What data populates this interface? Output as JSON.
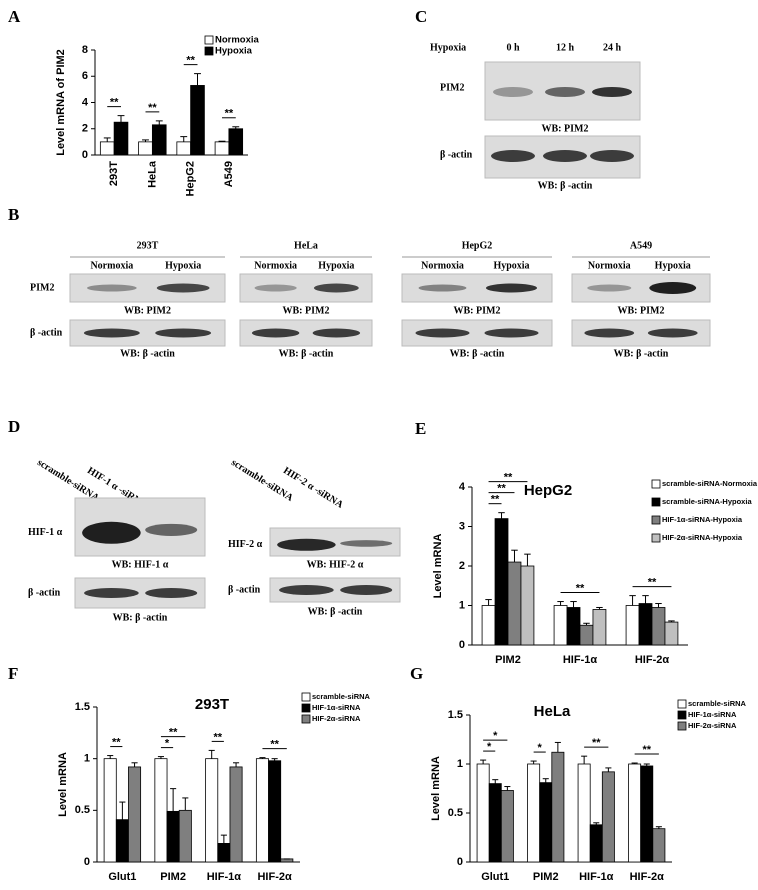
{
  "chart_data": [
    {
      "type": "bar",
      "panel": "A",
      "ylabel": "Level mRNA of PIM2",
      "categories": [
        "293T",
        "HeLa",
        "HepG2",
        "A549"
      ],
      "xtick_rotation": 90,
      "series": [
        {
          "name": "Normoxia",
          "color": "#ffffff",
          "values": [
            1,
            1,
            1,
            1
          ],
          "errors": [
            0.3,
            0.15,
            0.4,
            0.05
          ]
        },
        {
          "name": "Hypoxia",
          "color": "#000000",
          "values": [
            2.5,
            2.3,
            5.3,
            2.0
          ],
          "errors": [
            0.5,
            0.3,
            0.9,
            0.15
          ]
        }
      ],
      "ylim": [
        0,
        8
      ],
      "yticks": [
        0,
        2,
        4,
        6,
        8
      ],
      "grid": false,
      "legend": "top-right",
      "annotations": [
        {
          "text": "**",
          "category": 0,
          "from": 0,
          "to": 1
        },
        {
          "text": "**",
          "category": 1,
          "from": 0,
          "to": 1
        },
        {
          "text": "**",
          "category": 2,
          "from": 0,
          "to": 1
        },
        {
          "text": "**",
          "category": 3,
          "from": 0,
          "to": 1
        }
      ]
    },
    {
      "type": "bar",
      "panel": "E",
      "title": "HepG2",
      "ylabel": "Level mRNA",
      "categories": [
        "PIM2",
        "HIF-1α",
        "HIF-2α"
      ],
      "series": [
        {
          "name": "scramble-siRNA-Normoxia",
          "color": "#ffffff",
          "values": [
            1,
            1,
            1
          ],
          "errors": [
            0.15,
            0.1,
            0.25
          ]
        },
        {
          "name": "scramble-siRNA-Hypoxia",
          "color": "#000000",
          "values": [
            3.2,
            0.95,
            1.05
          ],
          "errors": [
            0.15,
            0.15,
            0.2
          ]
        },
        {
          "name": "HIF-1α-siRNA-Hypoxia",
          "color": "#7f7f7f",
          "values": [
            2.1,
            0.5,
            0.95
          ],
          "errors": [
            0.3,
            0.05,
            0.1
          ]
        },
        {
          "name": "HIF-2α-siRNA-Hypoxia",
          "color": "#bfbfbf",
          "values": [
            2.0,
            0.9,
            0.58
          ],
          "errors": [
            0.3,
            0.05,
            0.03
          ]
        }
      ],
      "ylim": [
        0,
        4
      ],
      "yticks": [
        0,
        1,
        2,
        3,
        4
      ],
      "grid": false,
      "legend": "top-right",
      "annotations": [
        {
          "text": "**",
          "category": 0,
          "from": 0,
          "to": 1
        },
        {
          "text": "**",
          "category": 0,
          "from": 0,
          "to": 2
        },
        {
          "text": "**",
          "category": 0,
          "from": 0,
          "to": 3
        },
        {
          "text": "**",
          "category": 1,
          "from": 0,
          "to": 3
        },
        {
          "text": "**",
          "category": 2,
          "from": 0,
          "to": 3
        }
      ]
    },
    {
      "type": "bar",
      "panel": "F",
      "title": "293T",
      "ylabel": "Level mRNA",
      "categories": [
        "Glut1",
        "PIM2",
        "HIF-1α",
        "HIF-2α"
      ],
      "series": [
        {
          "name": "scramble-siRNA",
          "color": "#ffffff",
          "values": [
            1,
            1,
            1,
            1
          ],
          "errors": [
            0.03,
            0.02,
            0.08,
            0.01
          ]
        },
        {
          "name": "HIF-1α-siRNA",
          "color": "#000000",
          "values": [
            0.41,
            0.49,
            0.18,
            0.98
          ],
          "errors": [
            0.17,
            0.22,
            0.08,
            0.02
          ]
        },
        {
          "name": "HIF-2α-siRNA",
          "color": "#7f7f7f",
          "values": [
            0.92,
            0.5,
            0.92,
            0.03
          ],
          "errors": [
            0.04,
            0.12,
            0.04,
            0
          ]
        }
      ],
      "ylim": [
        0,
        1.5
      ],
      "yticks": [
        0,
        0.5,
        1,
        1.5
      ],
      "grid": false,
      "legend": "top-right",
      "annotations": [
        {
          "text": "**",
          "category": 0,
          "from": 0,
          "to": 1
        },
        {
          "text": "*",
          "category": 1,
          "from": 0,
          "to": 1
        },
        {
          "text": "**",
          "category": 1,
          "from": 0,
          "to": 2
        },
        {
          "text": "**",
          "category": 2,
          "from": 0,
          "to": 1
        },
        {
          "text": "**",
          "category": 3,
          "from": 0,
          "to": 2
        }
      ]
    },
    {
      "type": "bar",
      "panel": "G",
      "title": "HeLa",
      "ylabel": "Level mRNA",
      "categories": [
        "Glut1",
        "PIM2",
        "HIF-1α",
        "HIF-2α"
      ],
      "series": [
        {
          "name": "scramble-siRNA",
          "color": "#ffffff",
          "values": [
            1,
            1,
            1,
            1
          ],
          "errors": [
            0.04,
            0.03,
            0.08,
            0.01
          ]
        },
        {
          "name": "HIF-1α-siRNA",
          "color": "#000000",
          "values": [
            0.8,
            0.81,
            0.38,
            0.98
          ],
          "errors": [
            0.04,
            0.04,
            0.02,
            0.02
          ]
        },
        {
          "name": "HIF-2α-siRNA",
          "color": "#7f7f7f",
          "values": [
            0.73,
            1.12,
            0.92,
            0.34
          ],
          "errors": [
            0.04,
            0.1,
            0.04,
            0.02
          ]
        }
      ],
      "ylim": [
        0,
        1.5
      ],
      "yticks": [
        0,
        0.5,
        1,
        1.5
      ],
      "grid": false,
      "legend": "top-right",
      "annotations": [
        {
          "text": "*",
          "category": 0,
          "from": 0,
          "to": 1
        },
        {
          "text": "*",
          "category": 0,
          "from": 0,
          "to": 2
        },
        {
          "text": "*",
          "category": 1,
          "from": 0,
          "to": 1
        },
        {
          "text": "**",
          "category": 2,
          "from": 0,
          "to": 2
        },
        {
          "text": "**",
          "category": 3,
          "from": 0,
          "to": 2
        }
      ]
    }
  ],
  "blots": {
    "C": {
      "panel": "C",
      "condition": "Hypoxia",
      "lanes": [
        "0 h",
        "12 h",
        "24 h"
      ],
      "rows": [
        {
          "name": "PIM2",
          "caption": "WB: PIM2"
        },
        {
          "name": "β -actin",
          "caption": "WB:  β -actin"
        }
      ]
    },
    "B": {
      "panel": "B",
      "lanes": [
        "Normoxia",
        "Hypoxia"
      ],
      "cells": [
        "293T",
        "HeLa",
        "HepG2",
        "A549"
      ],
      "rows": [
        {
          "name": "PIM2",
          "caption": "WB: PIM2"
        },
        {
          "name": "β -actin",
          "caption": "WB:  β -actin"
        }
      ]
    },
    "D": {
      "panel": "D",
      "blots": [
        {
          "lanes": [
            "scramble-siRNA",
            "HIF-1 α -siRNA"
          ],
          "rows": [
            {
              "name": "HIF-1 α",
              "caption": "WB: HIF-1 α"
            },
            {
              "name": "β -actin",
              "caption": "WB:  β -actin"
            }
          ]
        },
        {
          "lanes": [
            "scramble-siRNA",
            "HIF-2 α  -siRNA"
          ],
          "rows": [
            {
              "name": "HIF-2 α",
              "caption": "WB: HIF-2 α"
            },
            {
              "name": "β -actin",
              "caption": "WB:  β -actin"
            }
          ]
        }
      ]
    }
  }
}
